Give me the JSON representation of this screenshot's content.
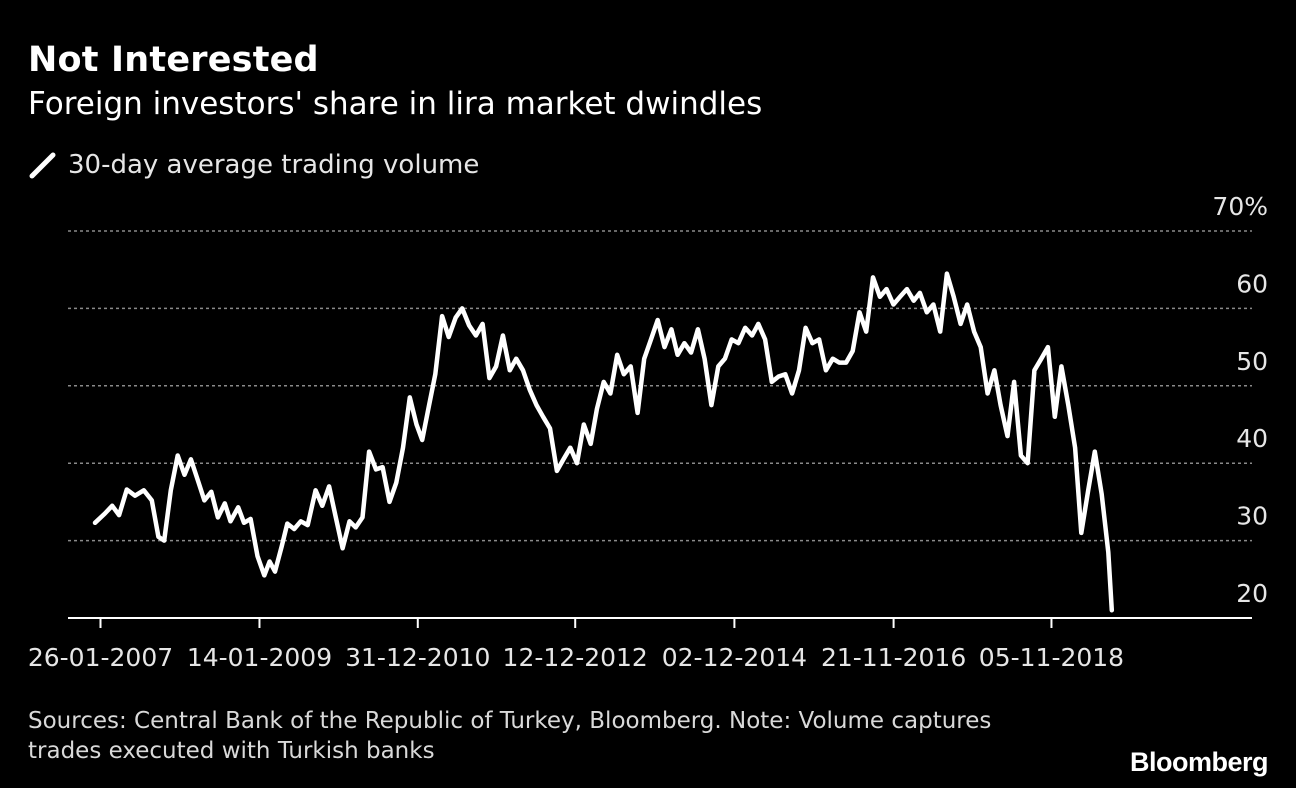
{
  "header": {
    "title": "Not Interested",
    "subtitle": "Foreign investors' share in lira market dwindles"
  },
  "legend": {
    "label": "30-day average trading volume",
    "icon": "line-swatch-icon"
  },
  "footer": {
    "source": "Sources: Central Bank of the Republic of Turkey, Bloomberg. Note: Volume captures trades executed with Turkish banks",
    "brand": "Bloomberg"
  },
  "colors": {
    "background": "#000000",
    "line": "#ffffff",
    "grid": "#8a8a8a",
    "text": "#ffffff"
  },
  "chart_data": {
    "type": "line",
    "title": "Not Interested",
    "subtitle": "Foreign investors' share in lira market dwindles",
    "x_tick_labels": [
      "26-01-2007",
      "14-01-2009",
      "31-12-2010",
      "12-12-2012",
      "02-12-2014",
      "21-11-2016",
      "05-11-2018"
    ],
    "y_tick_labels": [
      "70%",
      "60",
      "50",
      "40",
      "30",
      "20"
    ],
    "y_ticks": [
      70,
      60,
      50,
      40,
      30,
      20
    ],
    "ylim": [
      20,
      70
    ],
    "xlim": [
      "2006-09-01",
      "2021-04-30"
    ],
    "grid": true,
    "y_axis_side": "right",
    "series": [
      {
        "name": "30-day average trading volume",
        "points": [
          [
            "2007-01-01",
            32.3
          ],
          [
            "2007-02-15",
            33.5
          ],
          [
            "2007-03-20",
            34.5
          ],
          [
            "2007-04-20",
            33.3
          ],
          [
            "2007-05-25",
            36.6
          ],
          [
            "2007-07-01",
            35.8
          ],
          [
            "2007-08-10",
            36.5
          ],
          [
            "2007-09-15",
            35.2
          ],
          [
            "2007-10-15",
            30.5
          ],
          [
            "2007-11-10",
            30.0
          ],
          [
            "2007-12-10",
            36.5
          ],
          [
            "2008-01-10",
            41.0
          ],
          [
            "2008-02-10",
            38.5
          ],
          [
            "2008-03-10",
            40.5
          ],
          [
            "2008-04-10",
            37.8
          ],
          [
            "2008-05-10",
            35.2
          ],
          [
            "2008-06-10",
            36.3
          ],
          [
            "2008-07-10",
            33.0
          ],
          [
            "2008-08-10",
            34.8
          ],
          [
            "2008-09-05",
            32.5
          ],
          [
            "2008-10-10",
            34.3
          ],
          [
            "2008-11-05",
            32.3
          ],
          [
            "2008-12-05",
            32.8
          ],
          [
            "2009-01-05",
            28.0
          ],
          [
            "2009-02-05",
            25.5
          ],
          [
            "2009-03-01",
            27.3
          ],
          [
            "2009-03-25",
            26.0
          ],
          [
            "2009-04-25",
            29.3
          ],
          [
            "2009-05-20",
            32.2
          ],
          [
            "2009-06-20",
            31.5
          ],
          [
            "2009-07-20",
            32.5
          ],
          [
            "2009-08-20",
            32.0
          ],
          [
            "2009-09-25",
            36.5
          ],
          [
            "2009-10-25",
            34.5
          ],
          [
            "2009-11-25",
            37.0
          ],
          [
            "2009-12-25",
            33.0
          ],
          [
            "2010-01-25",
            29.0
          ],
          [
            "2010-02-25",
            32.5
          ],
          [
            "2010-03-25",
            31.7
          ],
          [
            "2010-04-25",
            33.0
          ],
          [
            "2010-05-25",
            41.5
          ],
          [
            "2010-06-25",
            39.2
          ],
          [
            "2010-07-25",
            39.5
          ],
          [
            "2010-08-25",
            35.0
          ],
          [
            "2010-09-25",
            37.5
          ],
          [
            "2010-10-25",
            42.0
          ],
          [
            "2010-11-25",
            48.5
          ],
          [
            "2010-12-25",
            45.0
          ],
          [
            "2011-01-20",
            43.0
          ],
          [
            "2011-02-20",
            47.5
          ],
          [
            "2011-03-20",
            51.5
          ],
          [
            "2011-04-20",
            59.0
          ],
          [
            "2011-05-20",
            56.3
          ],
          [
            "2011-06-20",
            58.8
          ],
          [
            "2011-07-20",
            60.0
          ],
          [
            "2011-08-20",
            57.8
          ],
          [
            "2011-09-20",
            56.5
          ],
          [
            "2011-10-20",
            58.0
          ],
          [
            "2011-11-20",
            51.0
          ],
          [
            "2011-12-20",
            52.5
          ],
          [
            "2012-01-20",
            56.5
          ],
          [
            "2012-02-20",
            52.0
          ],
          [
            "2012-03-20",
            53.5
          ],
          [
            "2012-04-20",
            52.0
          ],
          [
            "2012-05-20",
            49.5
          ],
          [
            "2012-06-20",
            47.5
          ],
          [
            "2012-07-20",
            46.0
          ],
          [
            "2012-08-20",
            44.5
          ],
          [
            "2012-09-20",
            39.0
          ],
          [
            "2012-10-20",
            40.5
          ],
          [
            "2012-11-20",
            42.0
          ],
          [
            "2012-12-20",
            40.0
          ],
          [
            "2013-01-20",
            45.0
          ],
          [
            "2013-02-20",
            42.5
          ],
          [
            "2013-03-20",
            47.0
          ],
          [
            "2013-04-20",
            50.5
          ],
          [
            "2013-05-20",
            49.0
          ],
          [
            "2013-06-20",
            54.0
          ],
          [
            "2013-07-20",
            51.5
          ],
          [
            "2013-08-20",
            52.5
          ],
          [
            "2013-09-20",
            46.5
          ],
          [
            "2013-10-20",
            53.5
          ],
          [
            "2013-11-20",
            56.0
          ],
          [
            "2013-12-20",
            58.5
          ],
          [
            "2014-01-20",
            55.0
          ],
          [
            "2014-02-20",
            57.3
          ],
          [
            "2014-03-20",
            54.0
          ],
          [
            "2014-04-20",
            55.5
          ],
          [
            "2014-05-20",
            54.3
          ],
          [
            "2014-06-20",
            57.3
          ],
          [
            "2014-07-20",
            53.5
          ],
          [
            "2014-08-20",
            47.5
          ],
          [
            "2014-09-20",
            52.5
          ],
          [
            "2014-10-20",
            53.5
          ],
          [
            "2014-11-20",
            56.0
          ],
          [
            "2014-12-20",
            55.5
          ],
          [
            "2015-01-20",
            57.5
          ],
          [
            "2015-02-20",
            56.5
          ],
          [
            "2015-03-20",
            58.0
          ],
          [
            "2015-04-20",
            56.0
          ],
          [
            "2015-05-20",
            50.5
          ],
          [
            "2015-06-20",
            51.2
          ],
          [
            "2015-07-20",
            51.5
          ],
          [
            "2015-08-20",
            49.0
          ],
          [
            "2015-09-20",
            52.0
          ],
          [
            "2015-10-20",
            57.5
          ],
          [
            "2015-11-20",
            55.5
          ],
          [
            "2015-12-20",
            56.0
          ],
          [
            "2016-01-20",
            52.0
          ],
          [
            "2016-02-20",
            53.5
          ],
          [
            "2016-03-20",
            53.0
          ],
          [
            "2016-04-20",
            53.0
          ],
          [
            "2016-05-20",
            54.5
          ],
          [
            "2016-06-20",
            59.5
          ],
          [
            "2016-07-20",
            57.0
          ],
          [
            "2016-08-20",
            64.0
          ],
          [
            "2016-09-20",
            61.5
          ],
          [
            "2016-10-20",
            62.5
          ],
          [
            "2016-11-20",
            60.5
          ],
          [
            "2016-12-20",
            61.5
          ],
          [
            "2017-01-20",
            62.5
          ],
          [
            "2017-02-20",
            61.0
          ],
          [
            "2017-03-20",
            62.0
          ],
          [
            "2017-04-20",
            59.5
          ],
          [
            "2017-05-20",
            60.5
          ],
          [
            "2017-06-20",
            57.0
          ],
          [
            "2017-07-20",
            64.5
          ],
          [
            "2017-08-20",
            61.5
          ],
          [
            "2017-09-20",
            58.0
          ],
          [
            "2017-10-20",
            60.5
          ],
          [
            "2017-11-20",
            57.0
          ],
          [
            "2017-12-20",
            55.0
          ],
          [
            "2018-01-20",
            49.0
          ],
          [
            "2018-02-20",
            52.0
          ],
          [
            "2018-03-20",
            47.5
          ],
          [
            "2018-04-20",
            43.5
          ],
          [
            "2018-05-20",
            50.5
          ],
          [
            "2018-06-20",
            41.0
          ],
          [
            "2018-07-20",
            40.0
          ],
          [
            "2018-08-20",
            52.0
          ],
          [
            "2018-09-20",
            53.5
          ],
          [
            "2018-10-20",
            55.0
          ],
          [
            "2018-11-20",
            46.0
          ],
          [
            "2018-12-20",
            52.5
          ],
          [
            "2019-01-20",
            47.5
          ],
          [
            "2019-02-20",
            42.0
          ],
          [
            "2019-03-20",
            31.0
          ],
          [
            "2019-04-20",
            36.5
          ],
          [
            "2019-05-20",
            41.5
          ],
          [
            "2019-06-20",
            36.0
          ],
          [
            "2019-07-20",
            28.5
          ],
          [
            "2019-08-05",
            21.0
          ]
        ]
      }
    ]
  }
}
